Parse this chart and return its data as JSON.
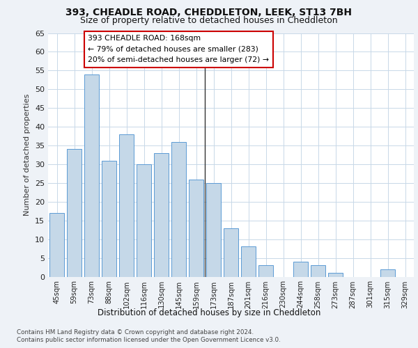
{
  "title1": "393, CHEADLE ROAD, CHEDDLETON, LEEK, ST13 7BH",
  "title2": "Size of property relative to detached houses in Cheddleton",
  "xlabel": "Distribution of detached houses by size in Cheddleton",
  "ylabel": "Number of detached properties",
  "categories": [
    "45sqm",
    "59sqm",
    "73sqm",
    "88sqm",
    "102sqm",
    "116sqm",
    "130sqm",
    "145sqm",
    "159sqm",
    "173sqm",
    "187sqm",
    "201sqm",
    "216sqm",
    "230sqm",
    "244sqm",
    "258sqm",
    "273sqm",
    "287sqm",
    "301sqm",
    "315sqm",
    "329sqm"
  ],
  "values": [
    17,
    34,
    54,
    31,
    38,
    30,
    33,
    36,
    26,
    25,
    13,
    8,
    3,
    0,
    4,
    3,
    1,
    0,
    0,
    2,
    0
  ],
  "bar_color": "#c5d8e8",
  "bar_edge_color": "#5b9bd5",
  "vline_x": 8.5,
  "vline_color": "#333333",
  "annotation_line0": "393 CHEADLE ROAD: 168sqm",
  "annotation_line1": "← 79% of detached houses are smaller (283)",
  "annotation_line2": "20% of semi-detached houses are larger (72) →",
  "annotation_box_color": "#cc0000",
  "ylim": [
    0,
    65
  ],
  "yticks": [
    0,
    5,
    10,
    15,
    20,
    25,
    30,
    35,
    40,
    45,
    50,
    55,
    60,
    65
  ],
  "footer1": "Contains HM Land Registry data © Crown copyright and database right 2024.",
  "footer2": "Contains public sector information licensed under the Open Government Licence v3.0.",
  "bg_color": "#eef2f7",
  "plot_bg_color": "#ffffff",
  "grid_color": "#c8d8e8"
}
